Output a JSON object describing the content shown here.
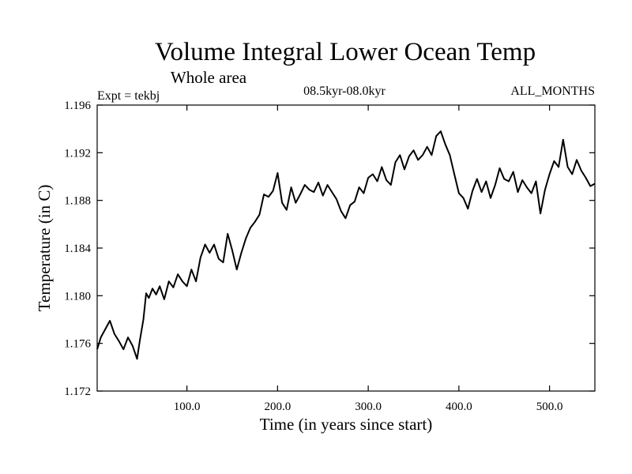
{
  "chart_data": {
    "type": "line",
    "title": "Volume Integral Lower Ocean Temp",
    "subtitle": "Whole area",
    "expt_label": "Expt = tekbj",
    "period_label": "08.5kyr-08.0kyr",
    "months_label": "ALL_MONTHS",
    "xlabel": "Time (in years since start)",
    "ylabel": "Temperature (in C)",
    "xlim": [
      1,
      550
    ],
    "ylim": [
      1.172,
      1.196
    ],
    "x_ticks": [
      100,
      200,
      300,
      400,
      500
    ],
    "x_tick_labels": [
      "100.0",
      "200.0",
      "300.0",
      "400.0",
      "500.0"
    ],
    "y_ticks": [
      1.172,
      1.176,
      1.18,
      1.184,
      1.188,
      1.192,
      1.196
    ],
    "y_tick_labels": [
      "1.172",
      "1.176",
      "1.180",
      "1.184",
      "1.188",
      "1.192",
      "1.196"
    ],
    "grid": false,
    "line_color": "#000000",
    "series": [
      {
        "name": "Volume Integral Lower Ocean Temp",
        "x": [
          1,
          5,
          10,
          15,
          20,
          25,
          30,
          35,
          40,
          45,
          48,
          52,
          55,
          58,
          62,
          66,
          70,
          75,
          80,
          85,
          90,
          95,
          100,
          105,
          110,
          115,
          120,
          125,
          130,
          135,
          140,
          145,
          150,
          155,
          160,
          165,
          170,
          175,
          180,
          185,
          190,
          195,
          200,
          205,
          210,
          215,
          220,
          225,
          230,
          235,
          240,
          245,
          250,
          255,
          260,
          265,
          270,
          275,
          280,
          285,
          290,
          295,
          300,
          305,
          310,
          315,
          320,
          325,
          330,
          335,
          340,
          345,
          350,
          355,
          360,
          365,
          370,
          375,
          380,
          385,
          390,
          395,
          400,
          405,
          410,
          415,
          420,
          425,
          430,
          435,
          440,
          445,
          450,
          455,
          460,
          465,
          470,
          475,
          480,
          485,
          490,
          495,
          500,
          505,
          510,
          515,
          520,
          525,
          530,
          535,
          540,
          545,
          550
        ],
        "values": [
          1.1755,
          1.1765,
          1.1772,
          1.1779,
          1.1768,
          1.1762,
          1.1755,
          1.1765,
          1.1758,
          1.1747,
          1.1762,
          1.178,
          1.1802,
          1.1798,
          1.1806,
          1.1801,
          1.1808,
          1.1797,
          1.1812,
          1.1807,
          1.1818,
          1.1812,
          1.1808,
          1.1822,
          1.1812,
          1.1832,
          1.1843,
          1.1836,
          1.1843,
          1.1831,
          1.1828,
          1.1852,
          1.1838,
          1.1822,
          1.1836,
          1.1848,
          1.1857,
          1.1862,
          1.1868,
          1.1885,
          1.1883,
          1.1888,
          1.1903,
          1.1878,
          1.1872,
          1.1891,
          1.1878,
          1.1885,
          1.1893,
          1.1889,
          1.1887,
          1.1895,
          1.1884,
          1.1893,
          1.1887,
          1.1881,
          1.1871,
          1.1865,
          1.1876,
          1.1879,
          1.1891,
          1.1886,
          1.1899,
          1.1902,
          1.1896,
          1.1908,
          1.1897,
          1.1893,
          1.1912,
          1.1918,
          1.1906,
          1.1917,
          1.1922,
          1.1914,
          1.1918,
          1.1925,
          1.1918,
          1.1934,
          1.1938,
          1.1927,
          1.1918,
          1.1902,
          1.1886,
          1.1882,
          1.1873,
          1.1888,
          1.1898,
          1.1887,
          1.1896,
          1.1882,
          1.1893,
          1.1907,
          1.1898,
          1.1896,
          1.1904,
          1.1887,
          1.1897,
          1.1891,
          1.1886,
          1.1896,
          1.1869,
          1.1889,
          1.1902,
          1.1913,
          1.1908,
          1.1931,
          1.1908,
          1.1902,
          1.1914,
          1.1905,
          1.1899,
          1.1892,
          1.1894
        ]
      }
    ]
  }
}
